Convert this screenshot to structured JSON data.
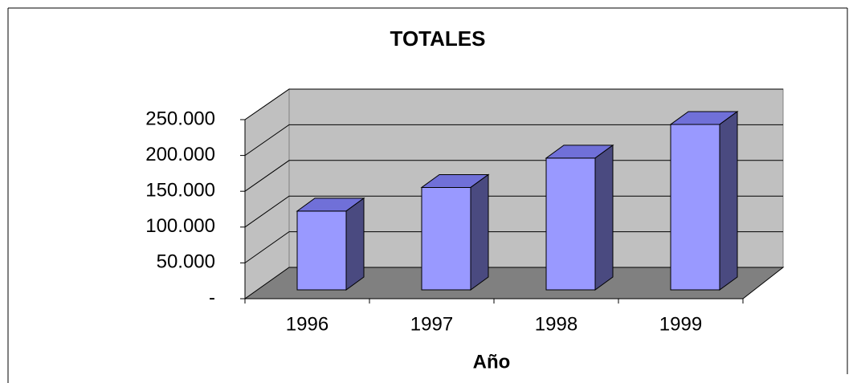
{
  "chart_data": {
    "type": "bar3d",
    "title": "TOTALES",
    "x_label": "Año",
    "categories": [
      "1996",
      "1997",
      "1998",
      "1999"
    ],
    "values": [
      110000,
      143000,
      184000,
      231000
    ],
    "color": "#9999ff",
    "ylim": [
      0,
      250000
    ],
    "yticks": [
      {
        "value": 0,
        "label": "-"
      },
      {
        "value": 50000,
        "label": "50.000"
      },
      {
        "value": 100000,
        "label": "100.000"
      },
      {
        "value": 150000,
        "label": "150.000"
      },
      {
        "value": 200000,
        "label": "200.000"
      },
      {
        "value": 250000,
        "label": "250.000"
      }
    ],
    "grid": true
  }
}
